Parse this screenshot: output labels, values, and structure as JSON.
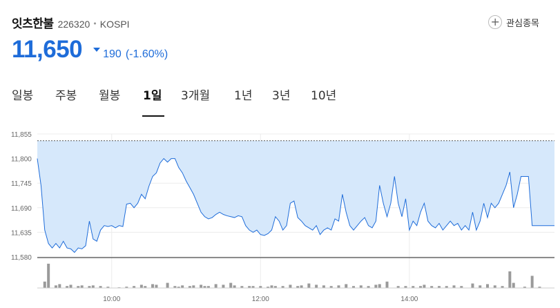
{
  "stock": {
    "name": "잇츠한불",
    "code": "226320",
    "market": "KOSPI",
    "price": "11,650",
    "change": "190",
    "change_rate": "(-1.60%)",
    "direction_color": "#1e6cd9"
  },
  "favorite": {
    "label": "관심종목",
    "icon": "plus-circle-icon"
  },
  "tabs": [
    {
      "label": "일봉"
    },
    {
      "label": "주봉"
    },
    {
      "label": "월봉"
    },
    {
      "label": "1일",
      "active": true
    },
    {
      "label": "3개월"
    },
    {
      "label": "1년"
    },
    {
      "label": "3년"
    },
    {
      "label": "10년"
    }
  ],
  "chart_data": {
    "type": "area",
    "title": "",
    "xlabel": "",
    "ylabel": "",
    "y_ticks": [
      "11,855",
      "11,800",
      "11,745",
      "11,690",
      "11,635",
      "11,580"
    ],
    "x_ticks": [
      "10:00",
      "12:00",
      "14:00"
    ],
    "ylim": [
      11580,
      11855
    ],
    "reference_line": 11840,
    "grid": true,
    "fill_color": "#d6e8fb",
    "line_color": "#1e6cd9",
    "volume_color": "#9a9a9a",
    "price_series": [
      [
        9.0,
        11800
      ],
      [
        9.05,
        11740
      ],
      [
        9.1,
        11640
      ],
      [
        9.15,
        11610
      ],
      [
        9.2,
        11600
      ],
      [
        9.25,
        11610
      ],
      [
        9.3,
        11600
      ],
      [
        9.35,
        11615
      ],
      [
        9.4,
        11600
      ],
      [
        9.45,
        11598
      ],
      [
        9.5,
        11590
      ],
      [
        9.55,
        11600
      ],
      [
        9.6,
        11598
      ],
      [
        9.65,
        11605
      ],
      [
        9.7,
        11660
      ],
      [
        9.75,
        11620
      ],
      [
        9.8,
        11615
      ],
      [
        9.85,
        11640
      ],
      [
        9.9,
        11650
      ],
      [
        9.95,
        11648
      ],
      [
        10.0,
        11650
      ],
      [
        10.05,
        11645
      ],
      [
        10.1,
        11650
      ],
      [
        10.15,
        11648
      ],
      [
        10.2,
        11698
      ],
      [
        10.25,
        11700
      ],
      [
        10.3,
        11690
      ],
      [
        10.35,
        11700
      ],
      [
        10.4,
        11720
      ],
      [
        10.45,
        11710
      ],
      [
        10.5,
        11738
      ],
      [
        10.55,
        11760
      ],
      [
        10.6,
        11768
      ],
      [
        10.65,
        11790
      ],
      [
        10.7,
        11800
      ],
      [
        10.75,
        11792
      ],
      [
        10.8,
        11800
      ],
      [
        10.85,
        11800
      ],
      [
        10.9,
        11780
      ],
      [
        10.95,
        11768
      ],
      [
        11.0,
        11750
      ],
      [
        11.05,
        11735
      ],
      [
        11.1,
        11720
      ],
      [
        11.15,
        11700
      ],
      [
        11.2,
        11680
      ],
      [
        11.25,
        11670
      ],
      [
        11.3,
        11665
      ],
      [
        11.35,
        11668
      ],
      [
        11.4,
        11675
      ],
      [
        11.45,
        11680
      ],
      [
        11.5,
        11675
      ],
      [
        11.55,
        11672
      ],
      [
        11.6,
        11670
      ],
      [
        11.65,
        11668
      ],
      [
        11.7,
        11672
      ],
      [
        11.75,
        11670
      ],
      [
        11.8,
        11650
      ],
      [
        11.85,
        11640
      ],
      [
        11.9,
        11635
      ],
      [
        11.95,
        11640
      ],
      [
        12.0,
        11630
      ],
      [
        12.05,
        11628
      ],
      [
        12.1,
        11632
      ],
      [
        12.15,
        11640
      ],
      [
        12.2,
        11670
      ],
      [
        12.25,
        11660
      ],
      [
        12.3,
        11640
      ],
      [
        12.35,
        11650
      ],
      [
        12.4,
        11700
      ],
      [
        12.45,
        11705
      ],
      [
        12.5,
        11668
      ],
      [
        12.55,
        11660
      ],
      [
        12.6,
        11650
      ],
      [
        12.65,
        11645
      ],
      [
        12.7,
        11640
      ],
      [
        12.75,
        11650
      ],
      [
        12.8,
        11630
      ],
      [
        12.85,
        11640
      ],
      [
        12.9,
        11645
      ],
      [
        12.95,
        11640
      ],
      [
        13.0,
        11665
      ],
      [
        13.05,
        11660
      ],
      [
        13.1,
        11720
      ],
      [
        13.15,
        11680
      ],
      [
        13.2,
        11650
      ],
      [
        13.25,
        11640
      ],
      [
        13.3,
        11650
      ],
      [
        13.35,
        11660
      ],
      [
        13.4,
        11668
      ],
      [
        13.45,
        11650
      ],
      [
        13.5,
        11645
      ],
      [
        13.55,
        11660
      ],
      [
        13.6,
        11740
      ],
      [
        13.65,
        11700
      ],
      [
        13.7,
        11670
      ],
      [
        13.75,
        11700
      ],
      [
        13.8,
        11760
      ],
      [
        13.85,
        11700
      ],
      [
        13.9,
        11670
      ],
      [
        13.95,
        11710
      ],
      [
        14.0,
        11640
      ],
      [
        14.05,
        11660
      ],
      [
        14.1,
        11650
      ],
      [
        14.15,
        11680
      ],
      [
        14.2,
        11700
      ],
      [
        14.25,
        11660
      ],
      [
        14.3,
        11650
      ],
      [
        14.35,
        11645
      ],
      [
        14.4,
        11655
      ],
      [
        14.45,
        11640
      ],
      [
        14.5,
        11650
      ],
      [
        14.55,
        11660
      ],
      [
        14.6,
        11650
      ],
      [
        14.65,
        11655
      ],
      [
        14.7,
        11640
      ],
      [
        14.75,
        11650
      ],
      [
        14.8,
        11640
      ],
      [
        14.85,
        11680
      ],
      [
        14.9,
        11640
      ],
      [
        14.95,
        11660
      ],
      [
        15.0,
        11700
      ],
      [
        15.05,
        11668
      ],
      [
        15.1,
        11700
      ],
      [
        15.15,
        11690
      ],
      [
        15.2,
        11700
      ],
      [
        15.25,
        11720
      ],
      [
        15.3,
        11740
      ],
      [
        15.35,
        11770
      ],
      [
        15.4,
        11690
      ],
      [
        15.45,
        11720
      ],
      [
        15.5,
        11760
      ],
      [
        15.55,
        11760
      ],
      [
        15.6,
        11760
      ],
      [
        15.65,
        11650
      ],
      [
        15.7,
        11650
      ],
      [
        15.75,
        11650
      ],
      [
        15.8,
        11650
      ],
      [
        15.85,
        11650
      ],
      [
        15.9,
        11650
      ],
      [
        15.95,
        11650
      ]
    ],
    "volume_series": [
      [
        9.1,
        10
      ],
      [
        9.15,
        38
      ],
      [
        9.25,
        4
      ],
      [
        9.3,
        6
      ],
      [
        9.4,
        3
      ],
      [
        9.45,
        5
      ],
      [
        9.55,
        3
      ],
      [
        9.6,
        4
      ],
      [
        9.7,
        3
      ],
      [
        9.75,
        4
      ],
      [
        9.85,
        3
      ],
      [
        9.95,
        2
      ],
      [
        10.1,
        1
      ],
      [
        10.2,
        2
      ],
      [
        10.3,
        3
      ],
      [
        10.4,
        5
      ],
      [
        10.45,
        3
      ],
      [
        10.55,
        6
      ],
      [
        10.6,
        5
      ],
      [
        10.75,
        8
      ],
      [
        10.85,
        3
      ],
      [
        10.9,
        2
      ],
      [
        10.95,
        4
      ],
      [
        11.05,
        3
      ],
      [
        11.1,
        4
      ],
      [
        11.2,
        5
      ],
      [
        11.25,
        3
      ],
      [
        11.3,
        3
      ],
      [
        11.4,
        6
      ],
      [
        11.5,
        5
      ],
      [
        11.6,
        8
      ],
      [
        11.65,
        4
      ],
      [
        11.75,
        3
      ],
      [
        11.85,
        3
      ],
      [
        11.9,
        3
      ],
      [
        12.0,
        3
      ],
      [
        12.1,
        2
      ],
      [
        12.15,
        4
      ],
      [
        12.2,
        3
      ],
      [
        12.3,
        3
      ],
      [
        12.4,
        5
      ],
      [
        12.5,
        3
      ],
      [
        12.55,
        4
      ],
      [
        12.65,
        7
      ],
      [
        12.75,
        5
      ],
      [
        12.85,
        4
      ],
      [
        12.95,
        3
      ],
      [
        13.05,
        4
      ],
      [
        13.15,
        6
      ],
      [
        13.25,
        3
      ],
      [
        13.35,
        4
      ],
      [
        13.45,
        3
      ],
      [
        13.55,
        5
      ],
      [
        13.6,
        6
      ],
      [
        13.7,
        10
      ],
      [
        13.85,
        3
      ],
      [
        13.95,
        3
      ],
      [
        14.05,
        3
      ],
      [
        14.15,
        3
      ],
      [
        14.2,
        5
      ],
      [
        14.3,
        3
      ],
      [
        14.4,
        3
      ],
      [
        14.5,
        3
      ],
      [
        14.6,
        4
      ],
      [
        14.7,
        3
      ],
      [
        14.85,
        7
      ],
      [
        14.95,
        4
      ],
      [
        15.05,
        6
      ],
      [
        15.15,
        4
      ],
      [
        15.25,
        3
      ],
      [
        15.35,
        26
      ],
      [
        15.4,
        8
      ],
      [
        15.55,
        2
      ],
      [
        15.65,
        19
      ],
      [
        15.75,
        2
      ]
    ]
  }
}
